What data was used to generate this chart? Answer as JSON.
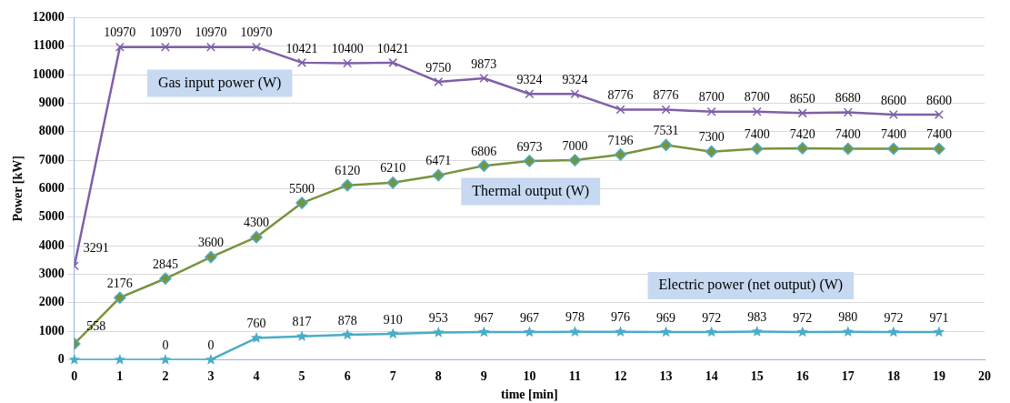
{
  "chart_data": {
    "type": "line",
    "xlabel": "time [min]",
    "ylabel": "Power [kW]",
    "x": [
      0,
      1,
      2,
      3,
      4,
      5,
      6,
      7,
      8,
      9,
      10,
      11,
      12,
      13,
      14,
      15,
      16,
      17,
      18,
      19
    ],
    "xlim": [
      0,
      20
    ],
    "xticks": [
      0,
      1,
      2,
      3,
      4,
      5,
      6,
      7,
      8,
      9,
      10,
      11,
      12,
      13,
      14,
      15,
      16,
      17,
      18,
      19,
      20
    ],
    "ylim": [
      0,
      12000
    ],
    "yticks": [
      0,
      1000,
      2000,
      3000,
      4000,
      5000,
      6000,
      7000,
      8000,
      9000,
      10000,
      11000,
      12000
    ],
    "grid": "y",
    "legend": false,
    "line_style": "solid",
    "series": [
      {
        "name": "Gas input power (W)",
        "color": "#7f5fa8",
        "marker": "cross",
        "values": [
          3291,
          10970,
          10970,
          10970,
          10970,
          10421,
          10400,
          10421,
          9750,
          9873,
          9324,
          9324,
          8776,
          8776,
          8700,
          8700,
          8650,
          8680,
          8600,
          8600
        ],
        "value_labels": [
          "3291",
          "10970",
          "10970",
          "10970",
          "10970",
          "10421",
          "10400",
          "10421",
          "9750",
          "9873",
          "9324",
          "9324",
          "8776",
          "8776",
          "8700",
          "8700",
          "8650",
          "8680",
          "8600",
          "8600"
        ]
      },
      {
        "name": "Thermal output (W)",
        "color": "#77933c",
        "marker": "diamond",
        "values": [
          558,
          2176,
          2845,
          3600,
          4300,
          5500,
          6120,
          6210,
          6471,
          6806,
          6973,
          7000,
          7196,
          7531,
          7300,
          7400,
          7420,
          7400,
          7400,
          7400
        ],
        "value_labels": [
          "558",
          "2176",
          "2845",
          "3600",
          "4300",
          "5500",
          "6120",
          "6210",
          "6471",
          "6806",
          "6973",
          "7000",
          "7196",
          "7531",
          "7300",
          "7400",
          "7420",
          "7400",
          "7400",
          "7400"
        ]
      },
      {
        "name": "Electric power (net output) (W)",
        "color": "#4bacc6",
        "marker": "star",
        "values": [
          0,
          0,
          0,
          0,
          760,
          817,
          878,
          910,
          953,
          967,
          967,
          978,
          976,
          969,
          972,
          983,
          972,
          980,
          972,
          971
        ],
        "value_labels": [
          null,
          null,
          "0",
          "0",
          "760",
          "817",
          "878",
          "910",
          "953",
          "967",
          "967",
          "978",
          "976",
          "969",
          "972",
          "983",
          "972",
          "980",
          "972",
          "971"
        ]
      }
    ]
  }
}
